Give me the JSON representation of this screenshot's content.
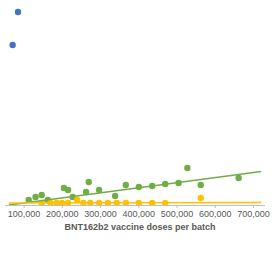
{
  "chart_data": {
    "type": "scatter",
    "x_label": "BNT162b2 vaccine doses per batch",
    "xlim": [
      50000,
      730000
    ],
    "xticks": [
      {
        "value": 100000,
        "label": "100,000"
      },
      {
        "value": 200000,
        "label": "200,000"
      },
      {
        "value": 300000,
        "label": "300,000"
      },
      {
        "value": 400000,
        "label": "400,000"
      },
      {
        "value": 500000,
        "label": "500,000"
      },
      {
        "value": 600000,
        "label": "600,000"
      },
      {
        "value": 700000,
        "label": "700,000"
      }
    ],
    "ylim": [
      0,
      100
    ],
    "tick_labels": "x",
    "grid": false,
    "series": [
      {
        "color": "#4472c4",
        "marker": "circle",
        "x": [
          70000,
          84000
        ],
        "values": [
          80,
          96.5
        ]
      },
      {
        "color": "#70ad47",
        "marker": "circle",
        "x": [
          112000,
          130000,
          146000,
          162000,
          204000,
          215000,
          227000,
          262000,
          269000,
          296000,
          338000,
          366000,
          400000,
          435000,
          469000,
          504000,
          527000,
          562000,
          661000
        ],
        "values": [
          2.5,
          4,
          5,
          2.5,
          8.5,
          7.5,
          4,
          6.5,
          11.5,
          7.5,
          4.5,
          10,
          9,
          9.5,
          10.5,
          11,
          18.5,
          10,
          13.5
        ]
      },
      {
        "color": "#ffc000",
        "marker": "circle",
        "x": [
          146000,
          169000,
          185000,
          199000,
          215000,
          239000,
          255000,
          273000,
          296000,
          319000,
          342000,
          366000,
          400000,
          435000,
          469000,
          562000
        ],
        "values": [
          1,
          1,
          1,
          1,
          1,
          2.5,
          1,
          1,
          1,
          1,
          1,
          1,
          1,
          1,
          1,
          3.5
        ]
      },
      {
        "type": "line",
        "line_style": "solid",
        "color": "#70ad47",
        "x": [
          60000,
          720000
        ],
        "values": [
          0,
          16.7
        ]
      },
      {
        "type": "line",
        "line_style": "solid",
        "color": "#ffc000",
        "x": [
          60000,
          720000
        ],
        "values": [
          1,
          1.2
        ]
      }
    ]
  }
}
